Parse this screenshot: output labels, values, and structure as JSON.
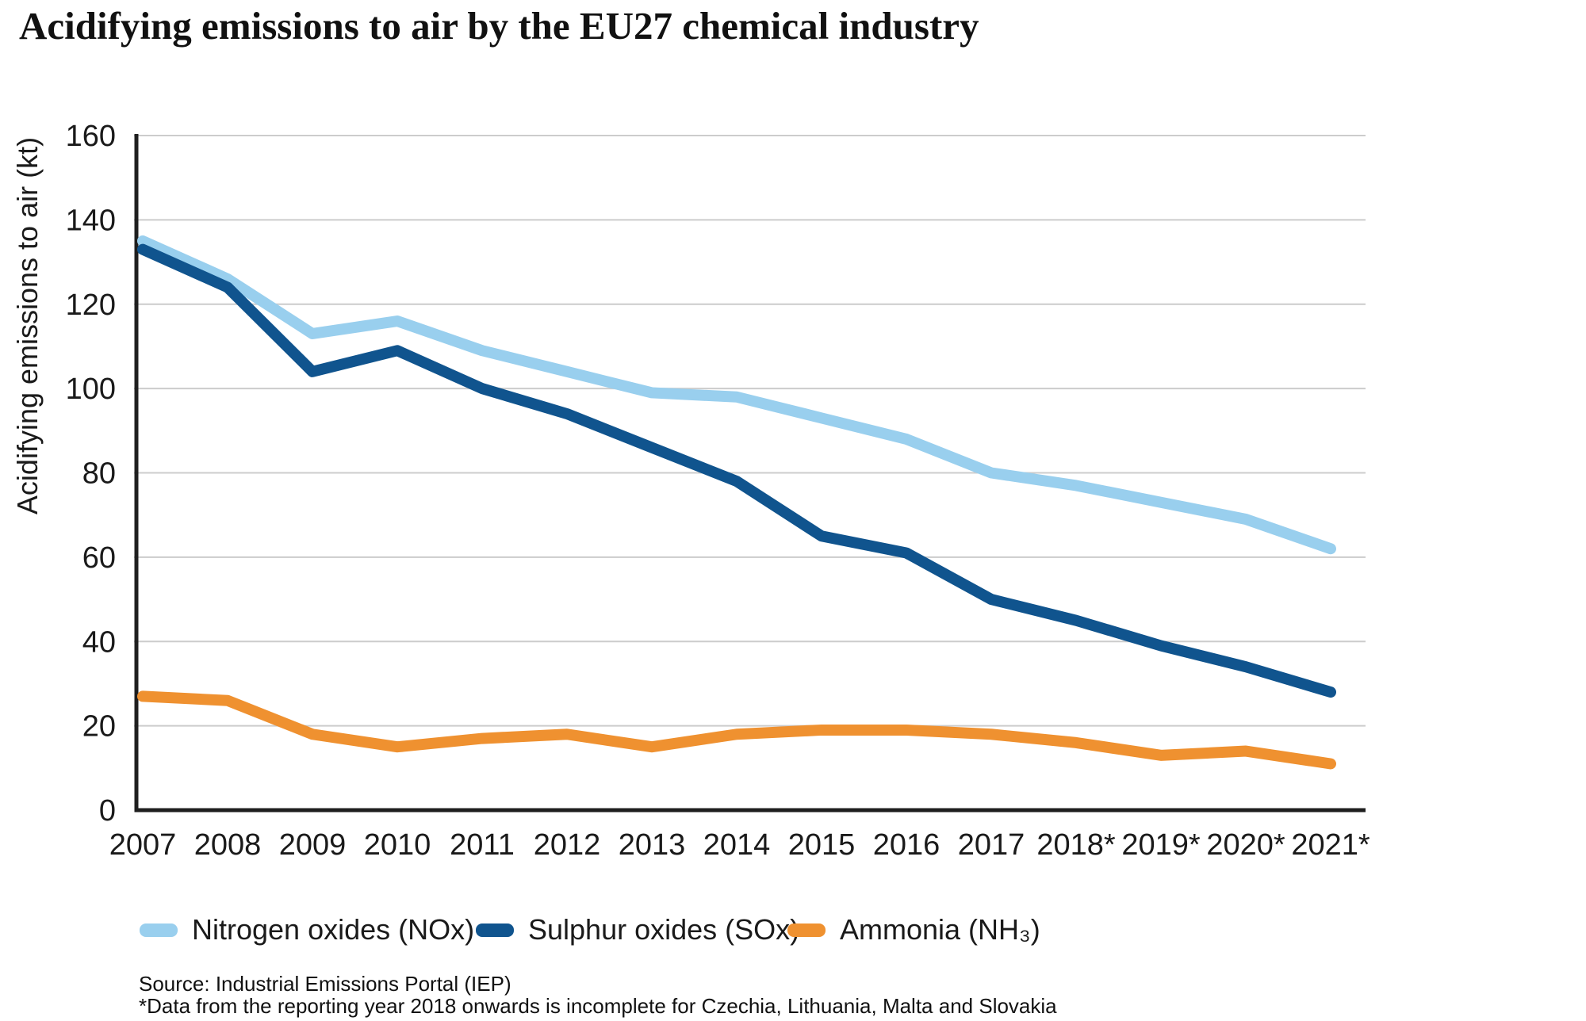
{
  "title": "Acidifying emissions to air by the EU27 chemical industry",
  "chart_data": {
    "type": "line",
    "title": "Acidifying emissions to air by the EU27 chemical industry",
    "xlabel": "",
    "ylabel": "Acidifying emissions to air (kt)",
    "ylim": [
      0,
      160
    ],
    "y_tick_step": 20,
    "grid": "horizontal gridlines only",
    "legend_position": "bottom",
    "categories": [
      "2007",
      "2008",
      "2009",
      "2010",
      "2011",
      "2012",
      "2013",
      "2014",
      "2015",
      "2016",
      "2017",
      "2018*",
      "2019*",
      "2020*",
      "2021*"
    ],
    "series": [
      {
        "name": "Nitrogen oxides (NOx)",
        "color": "#99cfee",
        "values": [
          135,
          126,
          113,
          116,
          109,
          104,
          99,
          98,
          93,
          88,
          80,
          77,
          73,
          69,
          62
        ]
      },
      {
        "name": "Sulphur oxides (SOx)",
        "color": "#10548e",
        "values": [
          133,
          124,
          104,
          109,
          100,
          94,
          86,
          78,
          65,
          61,
          50,
          45,
          39,
          34,
          28
        ]
      },
      {
        "name": "Ammonia (NH₃)",
        "color": "#ef9130",
        "values": [
          27,
          26,
          18,
          15,
          17,
          18,
          15,
          18,
          19,
          19,
          18,
          16,
          13,
          14,
          11
        ]
      }
    ]
  },
  "footnotes": {
    "source": "Source: Industrial Emissions Portal (IEP)",
    "note": "*Data from the reporting year 2018 onwards is incomplete for Czechia, Lithuania, Malta and Slovakia"
  },
  "colors": {
    "grid": "#cccccc",
    "axis": "#1f1f1f",
    "text": "#1a1a1a",
    "background": "#ffffff"
  }
}
